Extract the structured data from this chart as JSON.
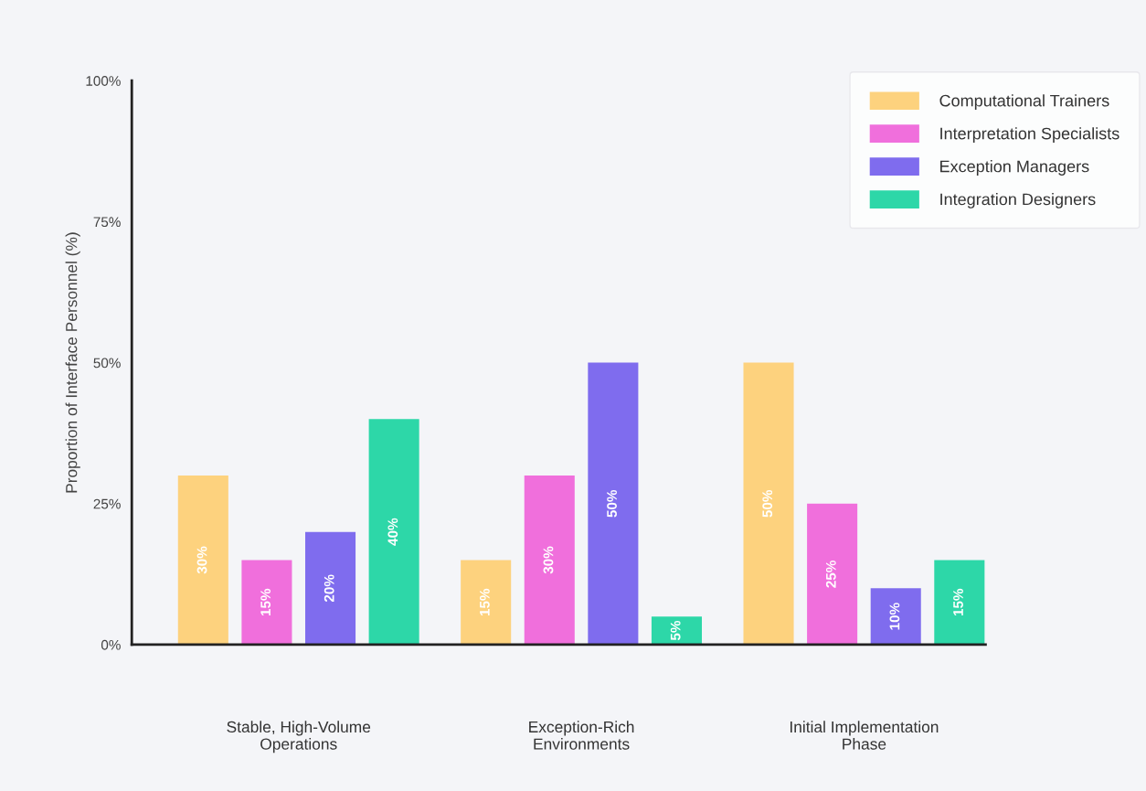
{
  "chart_data": {
    "type": "bar",
    "categories": [
      "Stable, High-Volume\nOperations",
      "Exception-Rich\nEnvironments",
      "Initial Implementation\nPhase"
    ],
    "series": [
      {
        "name": "Computational Trainers",
        "color": "#fdd27e",
        "values": [
          30,
          15,
          50
        ],
        "value_labels": [
          "30%",
          "15%",
          "50%"
        ]
      },
      {
        "name": "Interpretation Specialists",
        "color": "#f06fdc",
        "values": [
          15,
          30,
          25
        ],
        "value_labels": [
          "15%",
          "30%",
          "25%"
        ]
      },
      {
        "name": "Exception Managers",
        "color": "#7f6cee",
        "values": [
          20,
          50,
          10
        ],
        "value_labels": [
          "20%",
          "50%",
          "10%"
        ]
      },
      {
        "name": "Integration Designers",
        "color": "#2dd7a8",
        "values": [
          40,
          5,
          15
        ],
        "value_labels": [
          "40%",
          "5%",
          "15%"
        ]
      }
    ],
    "ylabel": "Proportion of Interface Personnel (%)",
    "ylim": [
      0,
      100
    ],
    "yticks": [
      {
        "value": 0,
        "label": "0%"
      },
      {
        "value": 25,
        "label": "25%"
      },
      {
        "value": 50,
        "label": "50%"
      },
      {
        "value": 75,
        "label": "75%"
      },
      {
        "value": 100,
        "label": "100%"
      }
    ],
    "grid": false,
    "legend": "top right"
  }
}
